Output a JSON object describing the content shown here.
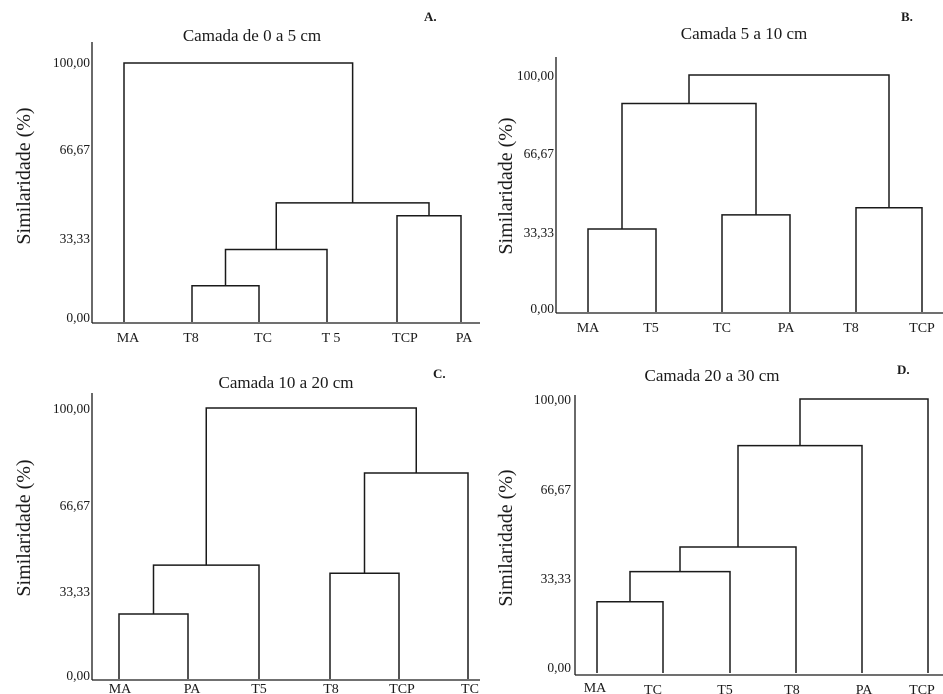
{
  "chart_data": [
    {
      "type": "dendrogram",
      "panel_label": "A.",
      "title": "Camada de 0 a 5 cm",
      "ylabel": "Similaridade (%)",
      "yticks": [
        "100,00",
        "66,67",
        "33,33",
        "0,00"
      ],
      "ytick_values": [
        100,
        66.67,
        33.33,
        0
      ],
      "ylim": [
        0,
        100
      ],
      "leaves": [
        "MA",
        "T8",
        "TC",
        "T 5",
        "TCP",
        "PA"
      ],
      "merges": [
        {
          "members": [
            "T8",
            "TC"
          ],
          "height": 14
        },
        {
          "members": [
            "T8",
            "TC",
            "T 5"
          ],
          "height": 28
        },
        {
          "members": [
            "TCP",
            "PA"
          ],
          "height": 41
        },
        {
          "members": [
            "T8",
            "TC",
            "T 5",
            "TCP",
            "PA"
          ],
          "height": 46
        },
        {
          "members": [
            "MA",
            "T8",
            "TC",
            "T 5",
            "TCP",
            "PA"
          ],
          "height": 100
        }
      ]
    },
    {
      "type": "dendrogram",
      "panel_label": "B.",
      "title": "Camada 5 a 10 cm",
      "ylabel": "Similaridade (%)",
      "yticks": [
        "100,00",
        "66,67",
        "33,33",
        "0,00"
      ],
      "ytick_values": [
        100,
        66.67,
        33.33,
        0
      ],
      "ylim": [
        0,
        100
      ],
      "leaves": [
        "MA",
        "T5",
        "TC",
        "PA",
        "T8",
        "TCP"
      ],
      "merges": [
        {
          "members": [
            "MA",
            "T5"
          ],
          "height": 35
        },
        {
          "members": [
            "TC",
            "PA"
          ],
          "height": 41
        },
        {
          "members": [
            "T8",
            "TCP"
          ],
          "height": 44
        },
        {
          "members": [
            "MA",
            "T5",
            "TC",
            "PA"
          ],
          "height": 88
        },
        {
          "members": [
            "MA",
            "T5",
            "TC",
            "PA",
            "T8",
            "TCP"
          ],
          "height": 100
        }
      ]
    },
    {
      "type": "dendrogram",
      "panel_label": "C.",
      "title": "Camada 10 a 20 cm",
      "ylabel": "Similaridade (%)",
      "yticks": [
        "100,00",
        "66,67",
        "33,33",
        "0,00"
      ],
      "ytick_values": [
        100,
        66.67,
        33.33,
        0
      ],
      "ylim": [
        0,
        100
      ],
      "leaves": [
        "MA",
        "PA",
        "T5",
        "T8",
        "TCP",
        "TC"
      ],
      "merges": [
        {
          "members": [
            "MA",
            "PA"
          ],
          "height": 24
        },
        {
          "members": [
            "T8",
            "TCP"
          ],
          "height": 39
        },
        {
          "members": [
            "MA",
            "PA",
            "T5"
          ],
          "height": 42
        },
        {
          "members": [
            "T8",
            "TCP",
            "TC"
          ],
          "height": 76
        },
        {
          "members": [
            "MA",
            "PA",
            "T5",
            "T8",
            "TCP",
            "TC"
          ],
          "height": 100
        }
      ]
    },
    {
      "type": "dendrogram",
      "panel_label": "D.",
      "title": "Camada 20 a 30 cm",
      "ylabel": "Similaridade (%)",
      "yticks": [
        "100,00",
        "66,67",
        "33,33",
        "0,00"
      ],
      "ytick_values": [
        100,
        66.67,
        33.33,
        0
      ],
      "ylim": [
        0,
        100
      ],
      "leaves": [
        "MA",
        "TC",
        "T5",
        "T8",
        "PA",
        "TCP"
      ],
      "merges": [
        {
          "members": [
            "MA",
            "TC"
          ],
          "height": 26
        },
        {
          "members": [
            "MA",
            "TC",
            "T5"
          ],
          "height": 37
        },
        {
          "members": [
            "MA",
            "TC",
            "T5",
            "T8"
          ],
          "height": 46
        },
        {
          "members": [
            "MA",
            "TC",
            "T5",
            "T8",
            "PA"
          ],
          "height": 83
        },
        {
          "members": [
            "MA",
            "TC",
            "T5",
            "T8",
            "PA",
            "TCP"
          ],
          "height": 100
        }
      ]
    }
  ]
}
